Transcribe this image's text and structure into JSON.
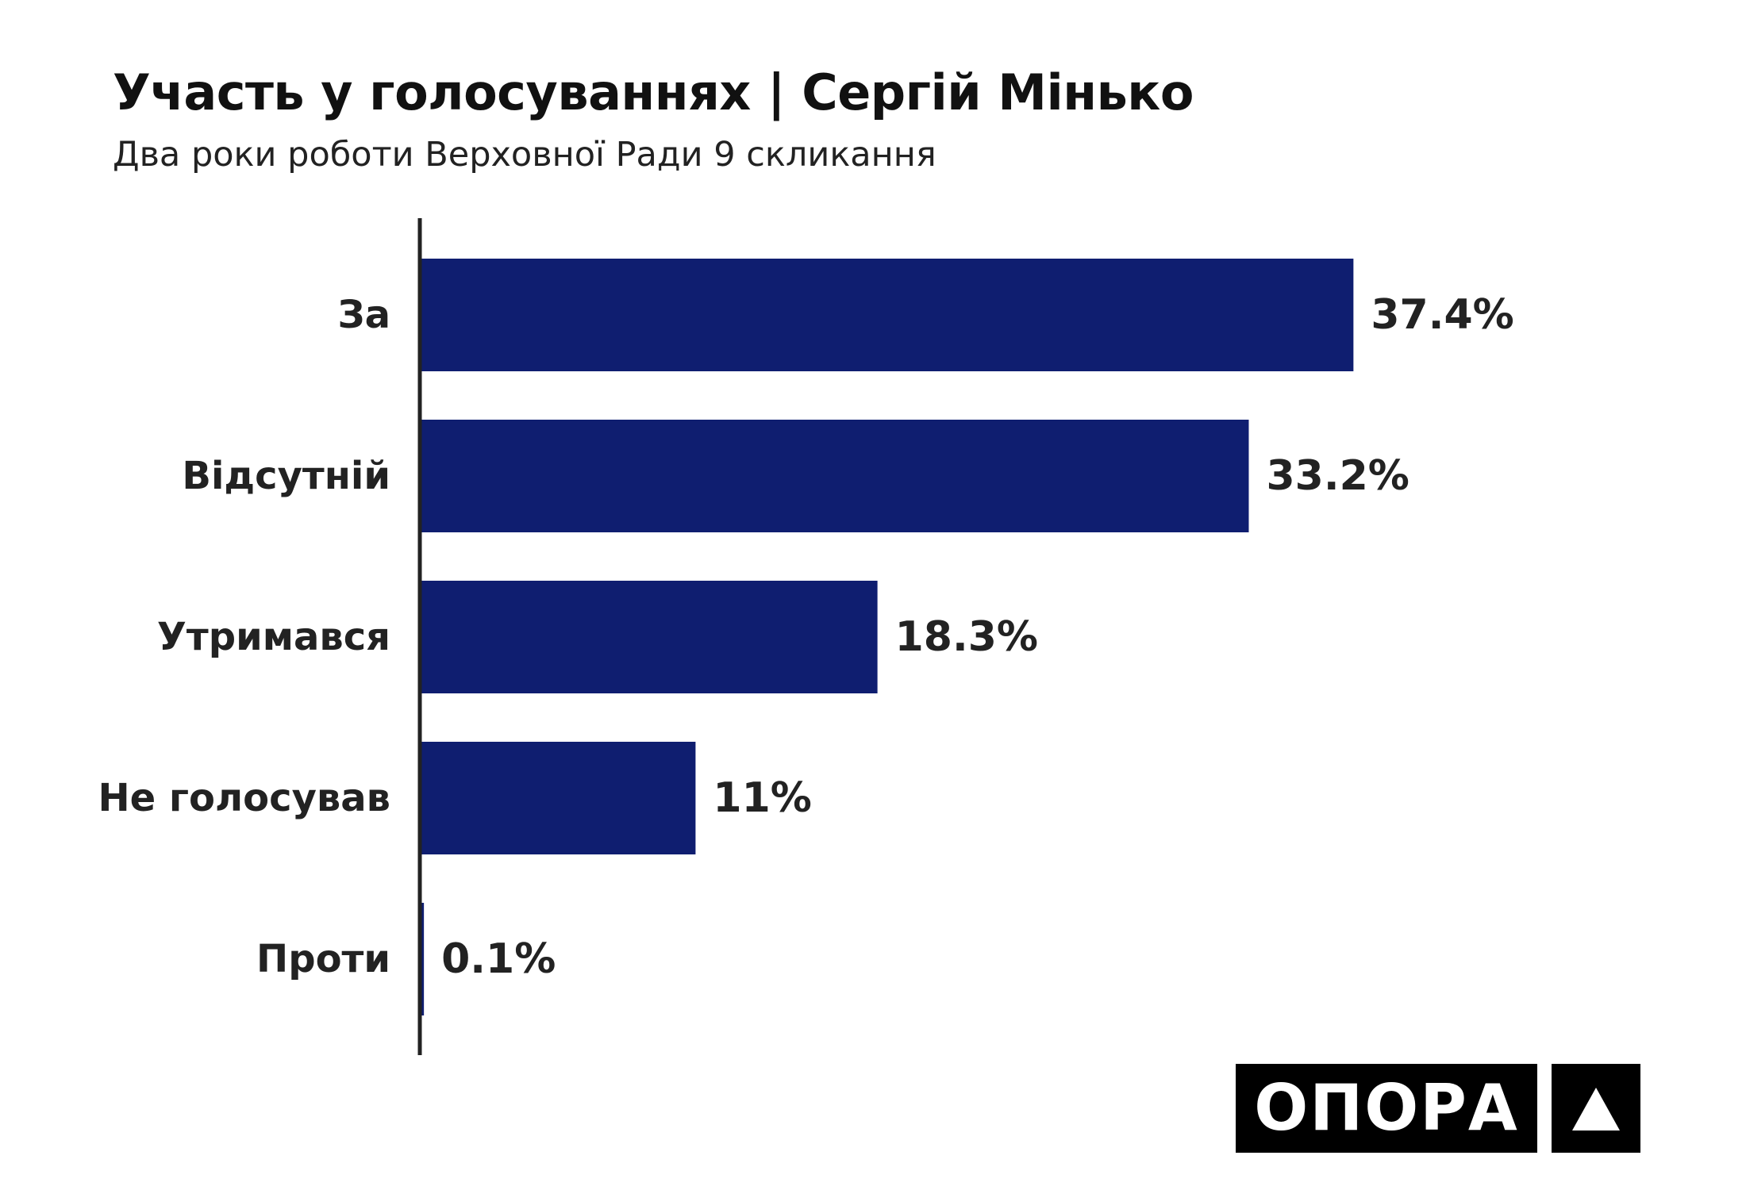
{
  "chart_data": {
    "type": "bar",
    "orientation": "horizontal",
    "title": "Участь у голосуваннях | Сергій Мінько",
    "subtitle": "Два роки роботи Верховної Ради 9 скликання",
    "categories": [
      "За",
      "Відсутній",
      "Утримався",
      "Не голосував",
      "Проти"
    ],
    "values": [
      37.4,
      33.2,
      18.3,
      11,
      0.1
    ],
    "value_labels": [
      "37.4%",
      "33.2%",
      "18.3%",
      "11%",
      "0.1%"
    ],
    "unit": "%",
    "grid": false,
    "legend": "none",
    "bar_color": "#0f1e70",
    "label_color": "#222222"
  },
  "logo": {
    "word": "ОПОРА",
    "mark": "triangle-icon"
  }
}
